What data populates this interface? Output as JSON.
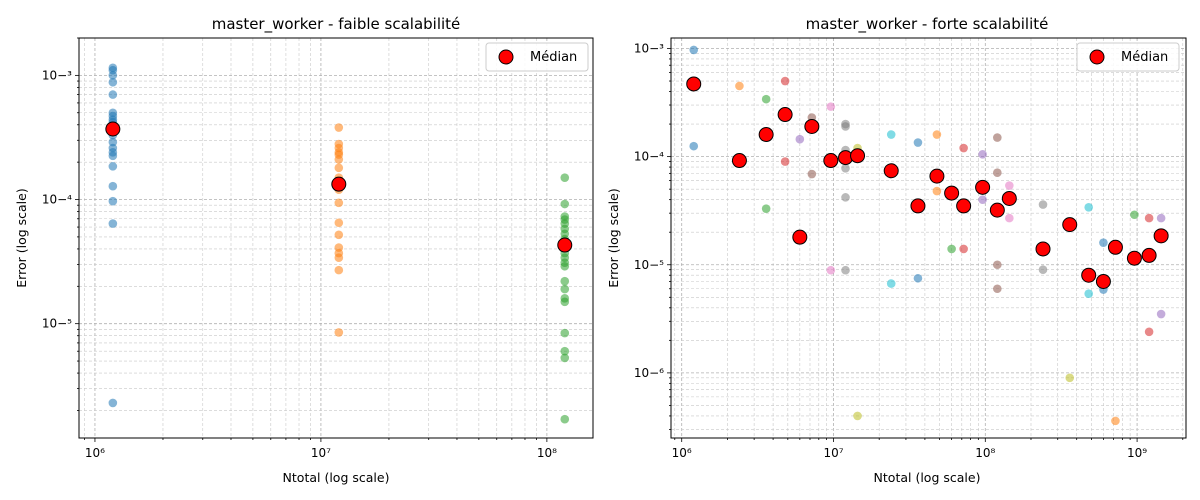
{
  "charts": [
    {
      "title": "master_worker - faible scalabilité",
      "xlabel": "Ntotal (log scale)",
      "ylabel": "Error (log scale)",
      "legend": "Médian"
    },
    {
      "title": "master_worker - forte scalabilité",
      "xlabel": "Ntotal (log scale)",
      "ylabel": "Error (log scale)",
      "legend": "Médian"
    }
  ],
  "chart_data": [
    {
      "type": "scatter",
      "title": "master_worker - faible scalabilité",
      "xlabel": "Ntotal (log scale)",
      "ylabel": "Error (log scale)",
      "xscale": "log",
      "yscale": "log",
      "xlim": [
        850000.0,
        160000000.0
      ],
      "ylim": [
        1.2e-06,
        0.002
      ],
      "xticks": [
        1000000.0,
        10000000.0,
        100000000.0
      ],
      "yticks": [
        1e-05,
        0.0001,
        0.001
      ],
      "grid": true,
      "legend_position": "top-right",
      "colors": {
        "series": [
          "#1f77b4",
          "#ff7f0e",
          "#2ca02c"
        ],
        "median": "#ff0000"
      },
      "series": [
        {
          "x": 1200000.0,
          "color": "#1f77b4",
          "y": [
            0.00115,
            0.0011,
            0.001,
            0.00088,
            0.0007,
            0.0005,
            0.00047,
            0.00044,
            0.00042,
            0.00039,
            0.00036,
            0.00033,
            0.00029,
            0.00026,
            0.00024,
            0.000225,
            0.000185,
            0.000128,
            9.7e-05,
            6.4e-05,
            2.3e-06
          ]
        },
        {
          "x": 12000000.0,
          "color": "#ff7f0e",
          "y": [
            0.00038,
            0.00028,
            0.00026,
            0.00024,
            0.00023,
            0.00021,
            0.00018,
            0.00015,
            0.00013,
            0.00012,
            9.4e-05,
            6.5e-05,
            5.2e-05,
            4.1e-05,
            3.7e-05,
            3.4e-05,
            2.7e-05,
            8.5e-06
          ]
        },
        {
          "x": 120000000.0,
          "color": "#2ca02c",
          "y": [
            0.00015,
            9.2e-05,
            7.3e-05,
            6.9e-05,
            6.4e-05,
            5.8e-05,
            5.3e-05,
            4.8e-05,
            4.4e-05,
            4.1e-05,
            3.7e-05,
            3.4e-05,
            3.1e-05,
            2.9e-05,
            2.2e-05,
            1.9e-05,
            1.6e-05,
            1.5e-05,
            8.4e-06,
            6e-06,
            5.3e-06,
            1.7e-06
          ]
        }
      ],
      "median": {
        "name": "Médian",
        "x": [
          1200000.0,
          12000000.0,
          120000000.0
        ],
        "y": [
          0.00037,
          0.000133,
          4.3e-05
        ]
      }
    },
    {
      "type": "scatter",
      "title": "master_worker - forte scalabilité",
      "xlabel": "Ntotal (log scale)",
      "ylabel": "Error (log scale)",
      "xscale": "log",
      "yscale": "log",
      "xlim": [
        850000.0,
        2100000000.0
      ],
      "ylim": [
        2.5e-07,
        0.00125
      ],
      "xticks": [
        1000000.0,
        10000000.0,
        100000000.0,
        1000000000.0
      ],
      "yticks": [
        1e-06,
        1e-05,
        0.0001,
        0.001
      ],
      "grid": true,
      "legend_position": "top-right",
      "colors": {
        "median": "#ff0000"
      },
      "points": [
        {
          "x": 1200000.0,
          "y": 0.00097,
          "c": "#1f77b4"
        },
        {
          "x": 1200000.0,
          "y": 0.000125,
          "c": "#1f77b4"
        },
        {
          "x": 2400000.0,
          "y": 0.00045,
          "c": "#ff7f0e"
        },
        {
          "x": 3600000.0,
          "y": 0.00034,
          "c": "#2ca02c"
        },
        {
          "x": 3600000.0,
          "y": 3.3e-05,
          "c": "#2ca02c"
        },
        {
          "x": 4800000.0,
          "y": 0.0005,
          "c": "#d62728"
        },
        {
          "x": 4800000.0,
          "y": 9e-05,
          "c": "#d62728"
        },
        {
          "x": 6000000.0,
          "y": 0.000145,
          "c": "#9467bd"
        },
        {
          "x": 7200000.0,
          "y": 0.00023,
          "c": "#8c564b"
        },
        {
          "x": 7200000.0,
          "y": 6.9e-05,
          "c": "#8c564b"
        },
        {
          "x": 9600000.0,
          "y": 0.00029,
          "c": "#e377c2"
        },
        {
          "x": 9600000.0,
          "y": 8.9e-06,
          "c": "#e377c2"
        },
        {
          "x": 12000000.0,
          "y": 0.0002,
          "c": "#7f7f7f"
        },
        {
          "x": 12000000.0,
          "y": 0.00019,
          "c": "#7f7f7f"
        },
        {
          "x": 12000000.0,
          "y": 0.000115,
          "c": "#7f7f7f"
        },
        {
          "x": 12000000.0,
          "y": 7.8e-05,
          "c": "#7f7f7f"
        },
        {
          "x": 12000000.0,
          "y": 4.2e-05,
          "c": "#7f7f7f"
        },
        {
          "x": 12000000.0,
          "y": 8.9e-06,
          "c": "#7f7f7f"
        },
        {
          "x": 14400000.0,
          "y": 0.00012,
          "c": "#bcbd22"
        },
        {
          "x": 14400000.0,
          "y": 4e-07,
          "c": "#bcbd22"
        },
        {
          "x": 24000000.0,
          "y": 0.00016,
          "c": "#17becf"
        },
        {
          "x": 24000000.0,
          "y": 6.7e-06,
          "c": "#17becf"
        },
        {
          "x": 36000000.0,
          "y": 0.000135,
          "c": "#1f77b4"
        },
        {
          "x": 36000000.0,
          "y": 7.5e-06,
          "c": "#1f77b4"
        },
        {
          "x": 48000000.0,
          "y": 0.00016,
          "c": "#ff7f0e"
        },
        {
          "x": 48000000.0,
          "y": 4.8e-05,
          "c": "#ff7f0e"
        },
        {
          "x": 60000000.0,
          "y": 1.4e-05,
          "c": "#2ca02c"
        },
        {
          "x": 72000000.0,
          "y": 0.00012,
          "c": "#d62728"
        },
        {
          "x": 72000000.0,
          "y": 1.4e-05,
          "c": "#d62728"
        },
        {
          "x": 96000000.0,
          "y": 0.000105,
          "c": "#9467bd"
        },
        {
          "x": 96000000.0,
          "y": 4e-05,
          "c": "#9467bd"
        },
        {
          "x": 120000000.0,
          "y": 0.00015,
          "c": "#8c564b"
        },
        {
          "x": 120000000.0,
          "y": 7.1e-05,
          "c": "#8c564b"
        },
        {
          "x": 120000000.0,
          "y": 1e-05,
          "c": "#8c564b"
        },
        {
          "x": 120000000.0,
          "y": 6e-06,
          "c": "#8c564b"
        },
        {
          "x": 144000000.0,
          "y": 5.4e-05,
          "c": "#e377c2"
        },
        {
          "x": 144000000.0,
          "y": 2.7e-05,
          "c": "#e377c2"
        },
        {
          "x": 240000000.0,
          "y": 3.6e-05,
          "c": "#7f7f7f"
        },
        {
          "x": 240000000.0,
          "y": 9e-06,
          "c": "#7f7f7f"
        },
        {
          "x": 360000000.0,
          "y": 9e-07,
          "c": "#bcbd22"
        },
        {
          "x": 480000000.0,
          "y": 3.4e-05,
          "c": "#17becf"
        },
        {
          "x": 480000000.0,
          "y": 5.4e-06,
          "c": "#17becf"
        },
        {
          "x": 600000000.0,
          "y": 1.6e-05,
          "c": "#1f77b4"
        },
        {
          "x": 600000000.0,
          "y": 5.9e-06,
          "c": "#1f77b4"
        },
        {
          "x": 720000000.0,
          "y": 3.6e-07,
          "c": "#ff7f0e"
        },
        {
          "x": 960000000.0,
          "y": 2.9e-05,
          "c": "#2ca02c"
        },
        {
          "x": 1200000000.0,
          "y": 2.7e-05,
          "c": "#d62728"
        },
        {
          "x": 1200000000.0,
          "y": 2.4e-06,
          "c": "#d62728"
        },
        {
          "x": 1440000000.0,
          "y": 2.7e-05,
          "c": "#9467bd"
        },
        {
          "x": 1440000000.0,
          "y": 3.5e-06,
          "c": "#9467bd"
        }
      ],
      "median": {
        "name": "Médian",
        "x": [
          1200000.0,
          2400000.0,
          3600000.0,
          4800000.0,
          6000000.0,
          7200000.0,
          9600000.0,
          12000000.0,
          14400000.0,
          24000000.0,
          36000000.0,
          48000000.0,
          60000000.0,
          72000000.0,
          96000000.0,
          120000000.0,
          144000000.0,
          240000000.0,
          360000000.0,
          480000000.0,
          600000000.0,
          720000000.0,
          960000000.0,
          1200000000.0,
          1440000000.0
        ],
        "y": [
          0.00047,
          9.2e-05,
          0.00016,
          0.000245,
          1.8e-05,
          0.00019,
          9.2e-05,
          9.8e-05,
          0.000102,
          7.4e-05,
          3.5e-05,
          6.6e-05,
          4.6e-05,
          3.5e-05,
          5.2e-05,
          3.2e-05,
          4.1e-05,
          1.4e-05,
          2.35e-05,
          8e-06,
          7e-06,
          1.45e-05,
          1.15e-05,
          1.22e-05,
          1.85e-05
        ]
      }
    }
  ]
}
